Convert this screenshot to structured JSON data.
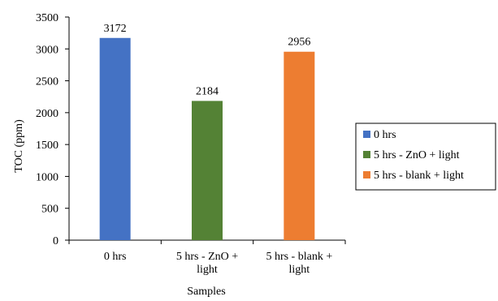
{
  "chart_data": {
    "type": "bar",
    "title": "",
    "xlabel": "Samples",
    "ylabel": "TOC (ppm)",
    "ylim": [
      0,
      3500
    ],
    "ytick_step": 500,
    "grid": false,
    "legend_position": "right",
    "categories": [
      [
        "0 hrs"
      ],
      [
        "5 hrs  - ZnO +",
        "light"
      ],
      [
        "5 hrs  - blank +",
        "light"
      ]
    ],
    "series": [
      {
        "name": "0 hrs",
        "color": "#4472C4"
      },
      {
        "name": "5 hrs  - ZnO + light",
        "color": "#548235"
      },
      {
        "name": "5 hrs  - blank + light",
        "color": "#ED7D31"
      }
    ],
    "values": [
      3172,
      2184,
      2956
    ],
    "data_labels": [
      "3172",
      "2184",
      "2956"
    ]
  }
}
